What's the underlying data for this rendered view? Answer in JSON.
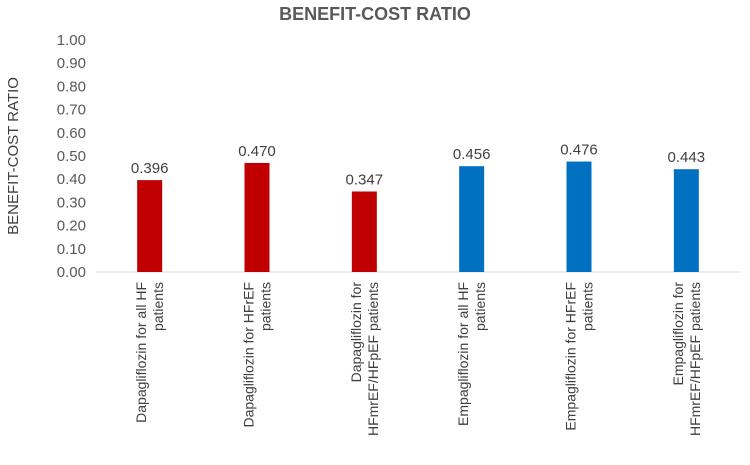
{
  "chart_data": {
    "type": "bar",
    "title": "BENEFIT-COST RATIO",
    "xlabel": "",
    "ylabel": "BENEFIT-COST RATIO",
    "ylim": [
      0,
      1.0
    ],
    "ytick_step": 0.1,
    "ytick_labels": [
      "0.00",
      "0.10",
      "0.20",
      "0.30",
      "0.40",
      "0.50",
      "0.60",
      "0.70",
      "0.80",
      "0.90",
      "1.00"
    ],
    "grid": false,
    "categories": [
      [
        "Dapagliflozin for all HF",
        "patients"
      ],
      [
        "Dapagliflozin for HFrEF",
        "patients"
      ],
      [
        "Dapagliflozin for",
        "HFmrEF/HFpEF patients"
      ],
      [
        "Empagliflozin for all HF",
        "patients"
      ],
      [
        "Empagliflozin for HFrEF",
        "patients"
      ],
      [
        "Empagliflozin for",
        "HFmrEF/HFpEF patients"
      ]
    ],
    "values": [
      0.396,
      0.47,
      0.347,
      0.456,
      0.476,
      0.443
    ],
    "value_labels": [
      "0.396",
      "0.470",
      "0.347",
      "0.456",
      "0.476",
      "0.443"
    ],
    "bar_colors": [
      "#C00000",
      "#C00000",
      "#C00000",
      "#0070C0",
      "#0070C0",
      "#0070C0"
    ]
  }
}
